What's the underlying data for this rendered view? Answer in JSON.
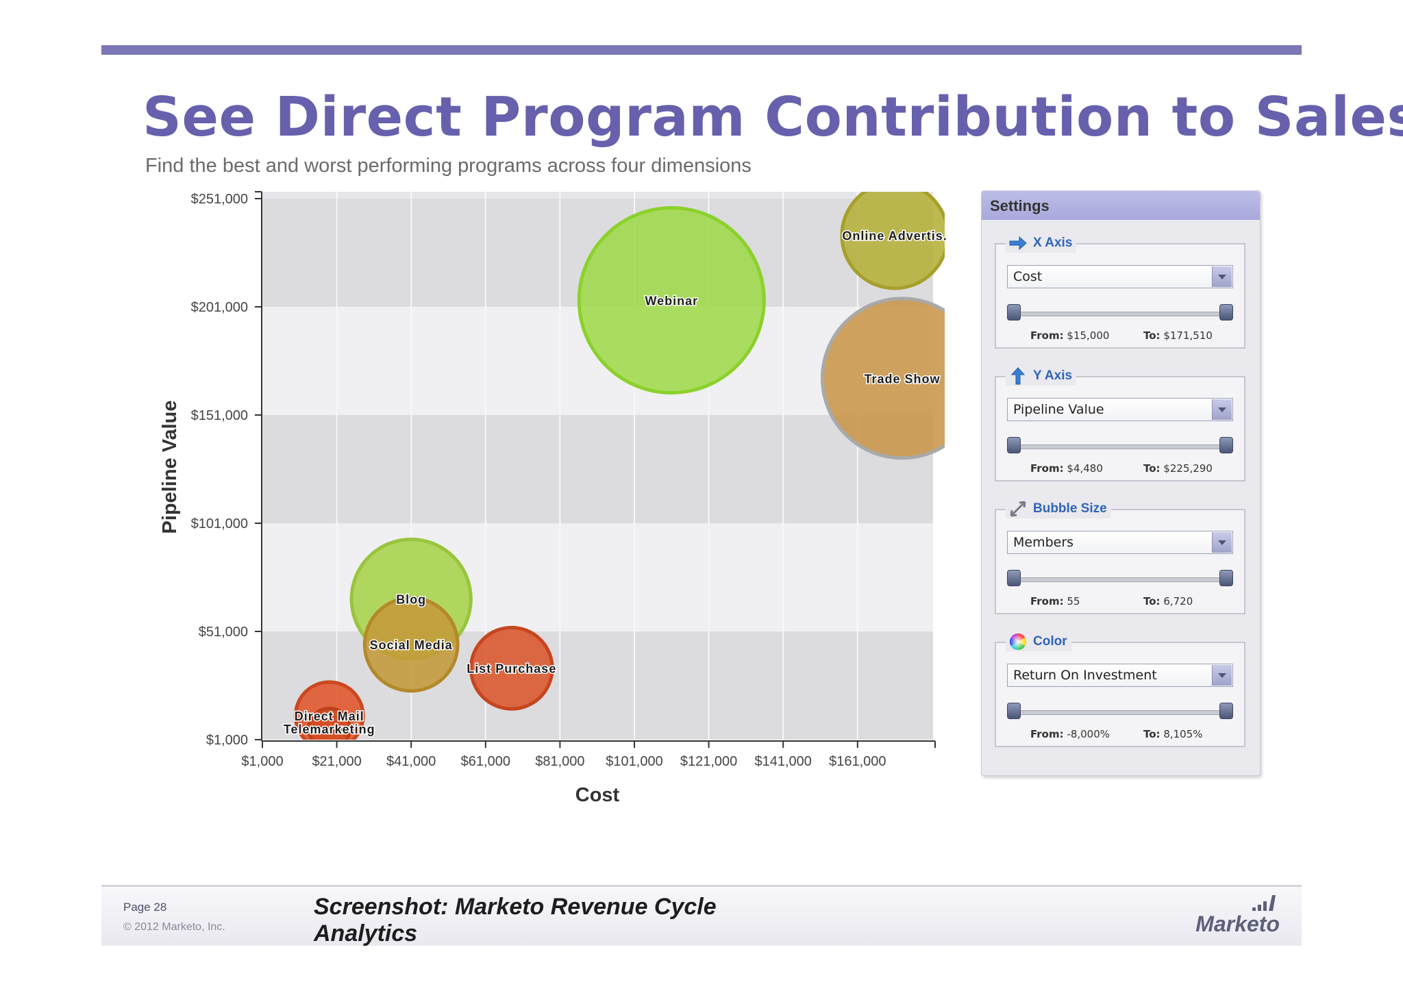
{
  "slide": {
    "title": "See Direct Program Contribution to Sales",
    "subtitle": "Find the best and worst performing programs across four dimensions",
    "accent_color": "#6660ad"
  },
  "chart_data": {
    "type": "scatter",
    "xlabel": "Cost",
    "ylabel": "Pipeline Value",
    "xlim": [
      1000,
      181000
    ],
    "ylim": [
      1000,
      251000
    ],
    "x_ticks": [
      "$1,000",
      "$21,000",
      "$41,000",
      "$61,000",
      "$81,000",
      "$101,000",
      "$121,000",
      "$141,000",
      "$161,000"
    ],
    "x_tick_values": [
      1000,
      21000,
      41000,
      61000,
      81000,
      101000,
      121000,
      141000,
      161000
    ],
    "y_ticks": [
      "$1,000",
      "$51,000",
      "$101,000",
      "$151,000",
      "$201,000",
      "$251,000"
    ],
    "y_tick_values": [
      1000,
      51000,
      101000,
      151000,
      201000,
      251000
    ],
    "grid": "horizontal bands",
    "bubbles": [
      {
        "label": "Webinar",
        "x": 111000,
        "y": 204000,
        "size": 6720,
        "color": "#9fd94a",
        "stroke": "#8bd12c"
      },
      {
        "label": "Online Advertis.",
        "x": 171000,
        "y": 234000,
        "size": 2200,
        "color": "#b5b03a",
        "stroke": "#a6a02b"
      },
      {
        "label": "Trade Show",
        "x": 173000,
        "y": 168000,
        "size": 5000,
        "color": "#c9954a",
        "stroke": "#a9a9a9"
      },
      {
        "label": "Blog",
        "x": 41000,
        "y": 66000,
        "size": 2800,
        "color": "#a6d24a",
        "stroke": "#98c53c"
      },
      {
        "label": "Social Media",
        "x": 41000,
        "y": 45000,
        "size": 1700,
        "color": "#c49a3a",
        "stroke": "#b4892a"
      },
      {
        "label": "List Purchase",
        "x": 68000,
        "y": 34000,
        "size": 1300,
        "color": "#d9562b",
        "stroke": "#c7451e"
      },
      {
        "label": "Direct Mail",
        "x": 19000,
        "y": 12000,
        "size": 900,
        "color": "#e0552c",
        "stroke": "#cc471f"
      },
      {
        "label": "Telemarketing",
        "x": 19000,
        "y": 6000,
        "size": 55,
        "color": "#d44a1e",
        "stroke": "#c0401a"
      }
    ]
  },
  "settings": {
    "title": "Settings",
    "groups": [
      {
        "label": "X Axis",
        "icon": "right-arrow-icon",
        "value": "Cost",
        "from_label": "From:",
        "from": "$15,000",
        "to_label": "To:",
        "to": "$171,510"
      },
      {
        "label": "Y Axis",
        "icon": "up-arrow-icon",
        "value": "Pipeline Value",
        "from_label": "From:",
        "from": "$4,480",
        "to_label": "To:",
        "to": "$225,290"
      },
      {
        "label": "Bubble Size",
        "icon": "expand-arrows-icon",
        "value": "Members",
        "from_label": "From:",
        "from": "55",
        "to_label": "To:",
        "to": "6,720"
      },
      {
        "label": "Color",
        "icon": "color-wheel-icon",
        "value": "Return On Investment",
        "from_label": "From:",
        "from": "-8,000%",
        "to_label": "To:",
        "to": "8,105%"
      }
    ]
  },
  "footer": {
    "page": "Page 28",
    "copyright": "© 2012 Marketo, Inc.",
    "caption": "Screenshot: Marketo Revenue Cycle Analytics",
    "logo": "Marketo"
  }
}
